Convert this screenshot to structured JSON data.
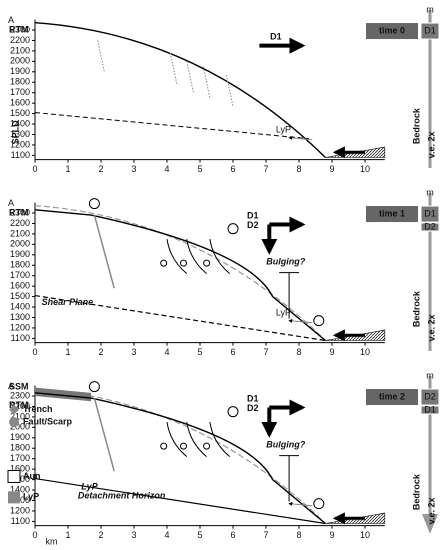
{
  "axis": {
    "yticks": [
      1100,
      1200,
      1300,
      1400,
      1500,
      1600,
      1700,
      1800,
      1900,
      2000,
      2100,
      2200,
      2300
    ],
    "xticks": [
      0,
      1,
      2,
      3,
      4,
      5,
      6,
      7,
      8,
      9,
      10
    ],
    "x_label": "km"
  },
  "panels": [
    {
      "time": "time 0",
      "corner": "A",
      "units": [
        "RTM"
      ],
      "lower_unit": "SPLD",
      "layer": "LyP",
      "deformation": [
        "D1"
      ],
      "stage_box": [
        "D1"
      ],
      "bedrock": "Bedrock",
      "exaggeration": "v.e. 2x",
      "scale_unit": "m"
    },
    {
      "time": "time 1",
      "corner": "A",
      "units": [
        "RTM"
      ],
      "layer": "LyP",
      "plane": "Shear Plane",
      "query": "Bulging?",
      "deformation": [
        "D1",
        "D2"
      ],
      "stage_box": [
        "D1",
        "D2"
      ],
      "bedrock": "Bedrock",
      "exaggeration": "v.e. 2x",
      "scale_unit": "m"
    },
    {
      "time": "time 2",
      "corner": "A",
      "units": [
        "SSM",
        "RTM"
      ],
      "legend": [
        "Trench",
        "Fault/Scarp",
        "Aun",
        "LyP"
      ],
      "layer": "LyP",
      "plane": "Detachment Horizon",
      "query": "Bulging?",
      "deformation": [
        "D1",
        "D2"
      ],
      "stage_box": [
        "D2",
        "D1"
      ],
      "bedrock": "Bedrock",
      "exaggeration": "v.e. 2x",
      "scale_unit": "m"
    }
  ]
}
